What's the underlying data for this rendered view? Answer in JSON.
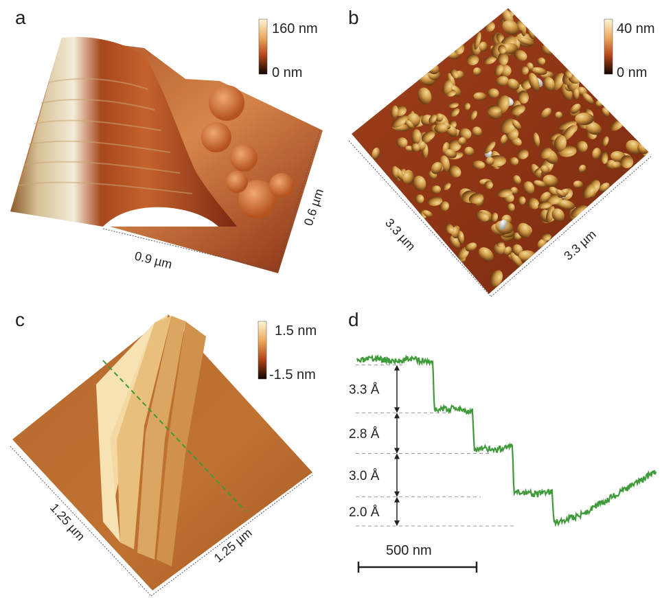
{
  "panels": {
    "a": {
      "letter": "a",
      "colorbar": {
        "max_label": "160 nm",
        "min_label": "0 nm"
      },
      "axis_x_label": "0.9 µm",
      "axis_y_label": "0.6 µm"
    },
    "b": {
      "letter": "b",
      "colorbar": {
        "max_label": "40 nm",
        "min_label": "0 nm"
      },
      "axis_left_label": "3.3 µm",
      "axis_right_label": "3.3 µm"
    },
    "c": {
      "letter": "c",
      "colorbar": {
        "max_label": "1.5 nm",
        "min_label": "-1.5 nm"
      },
      "axis_left_label": "1.25 µm",
      "axis_right_label": "1.25 µm"
    },
    "d": {
      "letter": "d",
      "step_labels": [
        "3.3 Å",
        "2.8 Å",
        "3.0 Å",
        "2.0 Å"
      ],
      "scalebar_label": "500 nm"
    }
  },
  "colors": {
    "profile_line": "#3f9a3a",
    "colorbar_top": "#fff6d8",
    "colorbar_mid": "#c2561c",
    "colorbar_bottom": "#120400"
  },
  "chart_data": {
    "type": "line",
    "title": "",
    "xlabel": "",
    "ylabel": "",
    "series": [
      {
        "values": [
          0,
          0.1,
          0.2,
          0.1,
          0,
          0.2,
          0.1,
          0,
          -3.3,
          -3.3,
          -3.2,
          -3.4,
          -6.1,
          -6.0,
          -6.1,
          -5.9,
          -9.1,
          -9.0,
          -9.2,
          -9.0,
          -11.1,
          -10.9,
          -10.7,
          -10.4,
          -10.0,
          -9.6,
          -9.2,
          -8.8,
          -8.4,
          -8.0,
          -7.6
        ]
      }
    ],
    "step_heights_angstrom": [
      3.3,
      2.8,
      3.0,
      2.0
    ]
  }
}
